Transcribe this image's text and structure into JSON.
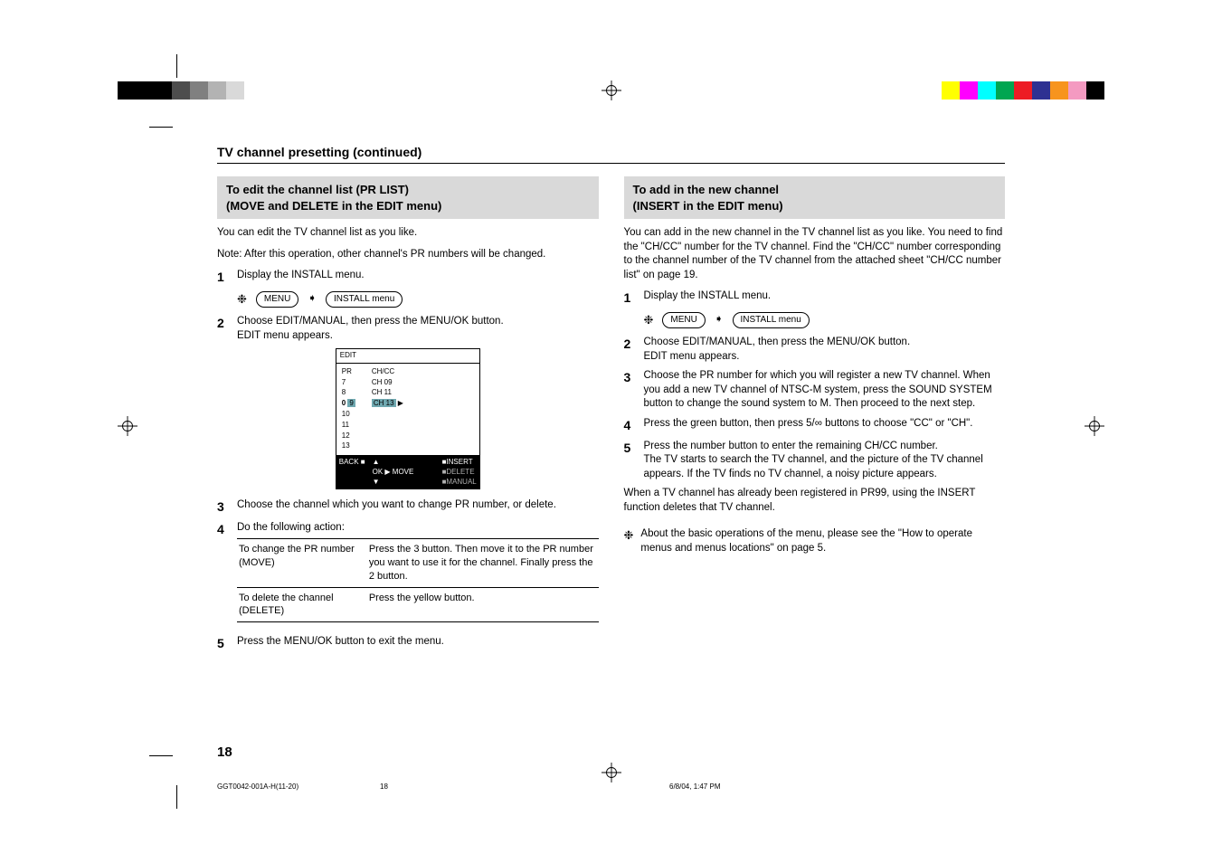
{
  "colors": {
    "section_head_bg": "#d9d9d9",
    "osd_highlight": "#6fa8b0",
    "osd_bar_bg": "#000000",
    "osd_bar_fg": "#ffffff",
    "osd_dim": "#b0b0b0",
    "text": "#000000",
    "bg": "#ffffff"
  },
  "print_bar_left": [
    "#000000",
    "#000000",
    "#000000",
    "#4d4d4d",
    "#808080",
    "#b3b3b3",
    "#d9d9d9",
    "#ffffff"
  ],
  "print_bar_right": [
    "#ffff00",
    "#ff00ff",
    "#00ffff",
    "#00a651",
    "#ed1c24",
    "#2e3192",
    "#f7941d",
    "#f49ac1",
    "#000000"
  ],
  "page_title": "TV channel presetting (continued)",
  "page_number": "18",
  "footer": {
    "file": "GGT0042-001A-H(11-20)",
    "page": "18",
    "timestamp": "6/8/04, 1:47 PM"
  },
  "left": {
    "heading_l1": "To edit the channel list (PR LIST)",
    "heading_l2": "(MOVE and DELETE in the EDIT menu)",
    "intro1": "You can edit the TV channel list as you like.",
    "intro2": "Note: After this operation, other channel's PR numbers will be changed.",
    "steps": {
      "s1": "Display the INSTALL menu.",
      "s2a": "Choose EDIT/MANUAL, then press the MENU/OK button.",
      "s2b": "EDIT menu appears.",
      "s3": "Choose the channel which you want to change PR number, or delete.",
      "s4": "Do the following action:",
      "s5": "Press the MENU/OK button to exit the menu."
    },
    "menu_path": {
      "a": "MENU",
      "b": "INSTALL menu"
    },
    "osd": {
      "title": "EDIT",
      "pr_head": "PR",
      "pr": [
        "7",
        "8",
        "9",
        "10",
        "11",
        "12",
        "13"
      ],
      "pr_hl_index": 2,
      "pr_hl_left": "0",
      "cc_head": "CH/CC",
      "cc": [
        "CH 09",
        "CH 11",
        "CH 13"
      ],
      "cc_hl_index": 2,
      "back": "BACK",
      "move_lbl": "MOVE",
      "nav_up": "5",
      "nav_down": "∞",
      "nav_right": "3",
      "ok": "OK",
      "insert": "INSERT",
      "delete": "DELETE",
      "manual": "MANUAL"
    },
    "table": {
      "r1c1": "To change the PR number (MOVE)",
      "r1c2": "Press the 3 button. Then move it to the PR number you want to use it for the channel. Finally press the 2 button.",
      "r2c1": "To delete the channel (DELETE)",
      "r2c2": "Press the yellow button."
    }
  },
  "right": {
    "heading_l1": "To add in the new channel",
    "heading_l2": "(INSERT in the EDIT menu)",
    "intro": "You can add in the new channel in the TV channel list as you like. You need to find the \"CH/CC\" number for the TV channel. Find the \"CH/CC\" number corresponding to the channel number of the TV channel from the attached sheet \"CH/CC number list\" on page 19.",
    "steps": {
      "s1": "Display the INSTALL menu.",
      "s2a": "Choose EDIT/MANUAL, then press the MENU/OK button.",
      "s2b": "EDIT menu appears.",
      "s3": "Choose the PR number for which you will register a new TV channel. When you add a new TV channel of NTSC-M system, press the SOUND SYSTEM button to change the sound system to M. Then proceed to the next step.",
      "s4": "Press the green button, then press 5/∞ buttons to choose \"CC\" or \"CH\".",
      "s5a": "Press the number button to enter the remaining CH/CC number.",
      "s5b": "The TV starts to search the TV channel, and the picture of the TV channel appears. If the TV finds no TV channel, a noisy picture appears."
    },
    "menu_path": {
      "a": "MENU",
      "b": "INSTALL menu"
    },
    "tail": "When a TV channel has already been registered in PR99, using the INSERT function deletes that TV channel.",
    "note": "About the basic operations of the menu, please see the \"How to operate menus and menus locations\" on page 5."
  }
}
